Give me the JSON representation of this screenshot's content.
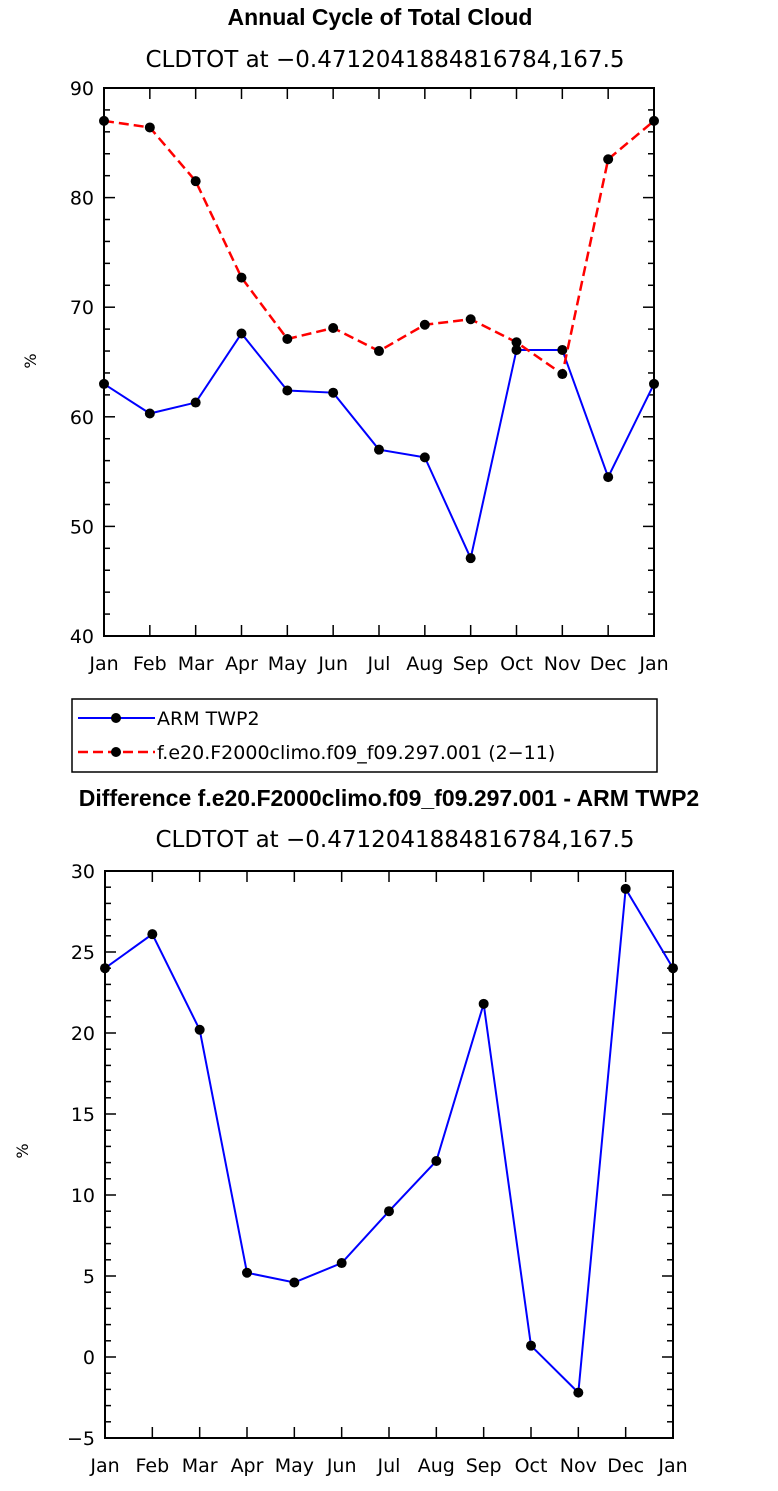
{
  "chart_data": [
    {
      "type": "line",
      "title": "Annual Cycle of Total Cloud",
      "subtitle": "CLDTOT at −0.4712041884816784,167.5",
      "ylabel": "%",
      "categories": [
        "Jan",
        "Feb",
        "Mar",
        "Apr",
        "May",
        "Jun",
        "Jul",
        "Aug",
        "Sep",
        "Oct",
        "Nov",
        "Dec",
        "Jan"
      ],
      "ylim": [
        40,
        90
      ],
      "yticks": [
        40,
        50,
        60,
        70,
        80,
        90
      ],
      "series": [
        {
          "name": "ARM TWP2",
          "color": "#0000ff",
          "dash": "solid",
          "values": [
            63.0,
            60.3,
            61.3,
            67.6,
            62.4,
            62.2,
            57.0,
            56.3,
            47.1,
            66.1,
            66.1,
            54.5,
            63.0
          ]
        },
        {
          "name": "f.e20.F2000climo.f09_f09.297.001 (2−11)",
          "color": "#ff0000",
          "dash": "dashed",
          "values": [
            87.0,
            86.4,
            81.5,
            72.7,
            67.1,
            68.1,
            66.0,
            68.4,
            68.9,
            66.8,
            63.9,
            83.5,
            87.0
          ]
        }
      ],
      "legend": "below"
    },
    {
      "type": "line",
      "title": "Difference f.e20.F2000climo.f09_f09.297.001 - ARM TWP2",
      "subtitle": "CLDTOT at −0.4712041884816784,167.5",
      "ylabel": "%",
      "categories": [
        "Jan",
        "Feb",
        "Mar",
        "Apr",
        "May",
        "Jun",
        "Jul",
        "Aug",
        "Sep",
        "Oct",
        "Nov",
        "Dec",
        "Jan"
      ],
      "ylim": [
        -5,
        30
      ],
      "yticks": [
        -5,
        0,
        5,
        10,
        15,
        20,
        25,
        30
      ],
      "series": [
        {
          "color": "#0000ff",
          "dash": "solid",
          "values": [
            24.0,
            26.1,
            20.2,
            5.2,
            4.6,
            5.8,
            9.0,
            12.1,
            21.8,
            0.7,
            -2.2,
            28.9,
            24.0
          ]
        }
      ]
    }
  ]
}
